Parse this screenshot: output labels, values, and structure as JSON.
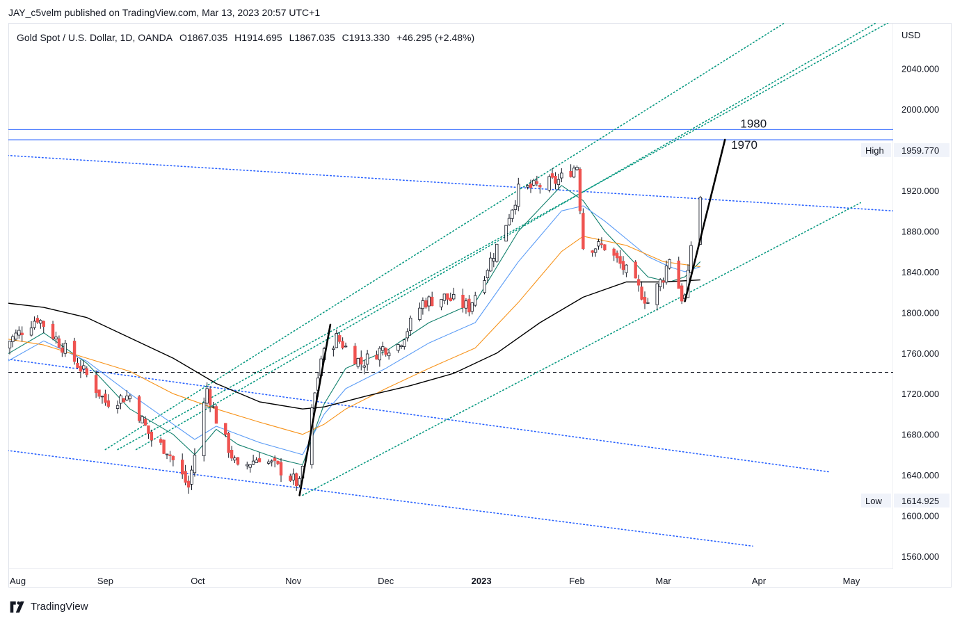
{
  "header": {
    "published": "JAY_c5velm published on TradingView.com, Mar 13, 2023 20:57 UTC+1"
  },
  "legend": {
    "symbol": "Gold Spot / U.S. Dollar, 1D, OANDA",
    "open": "O1867.035",
    "high": "H1914.695",
    "low": "L1867.035",
    "close": "C1913.330",
    "change": "+46.295 (+2.48%)"
  },
  "currency": "USD",
  "footer": {
    "brand": "TradingView"
  },
  "colors": {
    "bull": "#ffffff",
    "bear": "#ef5350",
    "wick": "#131722",
    "ema_fast": "#12806d",
    "ema_mid": "#5b9cf6",
    "ema_slow": "#f7931a",
    "sma_long": "#000000",
    "channel_blue": "#2962ff",
    "channel_green": "#089981",
    "hline": "#2962ff"
  },
  "chart_data": {
    "type": "candlestick",
    "title": "Gold Spot / U.S. Dollar, 1D, OANDA",
    "ylim": [
      1545,
      2085
    ],
    "y_ticks": [
      {
        "value": 1560,
        "label": "1560.000"
      },
      {
        "value": 1600,
        "label": "1600.000"
      },
      {
        "value": 1640,
        "label": "1640.000"
      },
      {
        "value": 1680,
        "label": "1680.000"
      },
      {
        "value": 1720,
        "label": "1720.000"
      },
      {
        "value": 1760,
        "label": "1760.000"
      },
      {
        "value": 1800,
        "label": "1800.000"
      },
      {
        "value": 1840,
        "label": "1840.000"
      },
      {
        "value": 1880,
        "label": "1880.000"
      },
      {
        "value": 1920,
        "label": "1920.000"
      },
      {
        "value": 2000,
        "label": "2000.000"
      },
      {
        "value": 2040,
        "label": "2040.000"
      }
    ],
    "x_ticks": [
      {
        "date": "2022-08-01",
        "label": "Aug",
        "bold": false
      },
      {
        "date": "2022-09-01",
        "label": "Sep",
        "bold": false
      },
      {
        "date": "2022-10-01",
        "label": "Oct",
        "bold": false
      },
      {
        "date": "2022-11-01",
        "label": "Nov",
        "bold": false
      },
      {
        "date": "2022-12-01",
        "label": "Dec",
        "bold": false
      },
      {
        "date": "2023-01-01",
        "label": "2023",
        "bold": true
      },
      {
        "date": "2023-02-01",
        "label": "Feb",
        "bold": false
      },
      {
        "date": "2023-03-01",
        "label": "Mar",
        "bold": false
      },
      {
        "date": "2023-04-01",
        "label": "Apr",
        "bold": false
      },
      {
        "date": "2023-05-01",
        "label": "May",
        "bold": false
      }
    ],
    "price_badges": [
      {
        "label": "High",
        "value": "1959.770",
        "price": 1959.77
      },
      {
        "label": "Low",
        "value": "1614.925",
        "price": 1614.925
      }
    ],
    "key_points": [
      {
        "date": "2022-07-29",
        "close": 1765
      },
      {
        "date": "2022-08-10",
        "close": 1795
      },
      {
        "date": "2022-08-15",
        "close": 1778
      },
      {
        "date": "2022-08-26",
        "close": 1738
      },
      {
        "date": "2022-09-01",
        "close": 1712
      },
      {
        "date": "2022-09-09",
        "close": 1718
      },
      {
        "date": "2022-09-16",
        "close": 1675
      },
      {
        "date": "2022-09-21",
        "close": 1665
      },
      {
        "date": "2022-09-28",
        "close": 1628
      },
      {
        "date": "2022-10-04",
        "close": 1725
      },
      {
        "date": "2022-10-07",
        "close": 1695
      },
      {
        "date": "2022-10-14",
        "close": 1645
      },
      {
        "date": "2022-10-21",
        "close": 1658
      },
      {
        "date": "2022-10-28",
        "close": 1645
      },
      {
        "date": "2022-11-03",
        "close": 1630
      },
      {
        "date": "2022-11-10",
        "close": 1755
      },
      {
        "date": "2022-11-15",
        "close": 1775
      },
      {
        "date": "2022-11-23",
        "close": 1750
      },
      {
        "date": "2022-11-30",
        "close": 1765
      },
      {
        "date": "2022-12-05",
        "close": 1768
      },
      {
        "date": "2022-12-13",
        "close": 1810
      },
      {
        "date": "2022-12-20",
        "close": 1815
      },
      {
        "date": "2022-12-28",
        "close": 1805
      },
      {
        "date": "2023-01-06",
        "close": 1865
      },
      {
        "date": "2023-01-13",
        "close": 1920
      },
      {
        "date": "2023-01-20",
        "close": 1925
      },
      {
        "date": "2023-01-26",
        "close": 1930
      },
      {
        "date": "2023-02-01",
        "close": 1945
      },
      {
        "date": "2023-02-03",
        "close": 1865
      },
      {
        "date": "2023-02-10",
        "close": 1865
      },
      {
        "date": "2023-02-17",
        "close": 1840
      },
      {
        "date": "2023-02-24",
        "close": 1810
      },
      {
        "date": "2023-03-01",
        "close": 1835
      },
      {
        "date": "2023-03-03",
        "close": 1855
      },
      {
        "date": "2023-03-07",
        "close": 1815
      },
      {
        "date": "2023-03-08",
        "close": 1815
      },
      {
        "date": "2023-03-09",
        "close": 1835
      },
      {
        "date": "2023-03-10",
        "close": 1867
      },
      {
        "date": "2023-03-13",
        "close": 1913.33
      }
    ],
    "moving_averages": [
      {
        "style": "ema_fast",
        "points": [
          [
            "2022-07-29",
            1755
          ],
          [
            "2022-08-12",
            1780
          ],
          [
            "2022-08-26",
            1750
          ],
          [
            "2022-09-09",
            1705
          ],
          [
            "2022-09-23",
            1680
          ],
          [
            "2022-09-30",
            1660
          ],
          [
            "2022-10-07",
            1685
          ],
          [
            "2022-10-14",
            1670
          ],
          [
            "2022-10-28",
            1655
          ],
          [
            "2022-11-04",
            1650
          ],
          [
            "2022-11-11",
            1710
          ],
          [
            "2022-11-18",
            1745
          ],
          [
            "2022-12-01",
            1762
          ],
          [
            "2022-12-15",
            1790
          ],
          [
            "2022-12-30",
            1810
          ],
          [
            "2023-01-13",
            1880
          ],
          [
            "2023-01-27",
            1925
          ],
          [
            "2023-02-03",
            1910
          ],
          [
            "2023-02-10",
            1880
          ],
          [
            "2023-02-24",
            1835
          ],
          [
            "2023-03-03",
            1830
          ],
          [
            "2023-03-08",
            1835
          ],
          [
            "2023-03-13",
            1850
          ]
        ]
      },
      {
        "style": "ema_mid",
        "points": [
          [
            "2022-07-29",
            1748
          ],
          [
            "2022-08-12",
            1772
          ],
          [
            "2022-08-26",
            1752
          ],
          [
            "2022-09-09",
            1720
          ],
          [
            "2022-09-23",
            1690
          ],
          [
            "2022-09-30",
            1675
          ],
          [
            "2022-10-07",
            1688
          ],
          [
            "2022-10-21",
            1672
          ],
          [
            "2022-11-04",
            1660
          ],
          [
            "2022-11-11",
            1700
          ],
          [
            "2022-11-18",
            1725
          ],
          [
            "2022-12-01",
            1745
          ],
          [
            "2022-12-15",
            1770
          ],
          [
            "2022-12-30",
            1790
          ],
          [
            "2023-01-13",
            1850
          ],
          [
            "2023-01-27",
            1900
          ],
          [
            "2023-02-03",
            1905
          ],
          [
            "2023-02-10",
            1890
          ],
          [
            "2023-02-24",
            1855
          ],
          [
            "2023-03-03",
            1845
          ],
          [
            "2023-03-08",
            1840
          ],
          [
            "2023-03-13",
            1845
          ]
        ]
      },
      {
        "style": "ema_slow",
        "points": [
          [
            "2022-07-29",
            1775
          ],
          [
            "2022-08-12",
            1768
          ],
          [
            "2022-08-26",
            1755
          ],
          [
            "2022-09-09",
            1742
          ],
          [
            "2022-09-23",
            1720
          ],
          [
            "2022-10-07",
            1705
          ],
          [
            "2022-10-21",
            1692
          ],
          [
            "2022-11-04",
            1680
          ],
          [
            "2022-11-11",
            1690
          ],
          [
            "2022-11-18",
            1705
          ],
          [
            "2022-12-01",
            1725
          ],
          [
            "2022-12-15",
            1745
          ],
          [
            "2022-12-30",
            1765
          ],
          [
            "2023-01-13",
            1810
          ],
          [
            "2023-01-27",
            1860
          ],
          [
            "2023-02-03",
            1875
          ],
          [
            "2023-02-17",
            1866
          ],
          [
            "2023-03-01",
            1850
          ],
          [
            "2023-03-13",
            1845
          ]
        ]
      },
      {
        "style": "sma_long",
        "points": [
          [
            "2022-07-29",
            1810
          ],
          [
            "2022-08-12",
            1805
          ],
          [
            "2022-08-26",
            1795
          ],
          [
            "2022-09-09",
            1775
          ],
          [
            "2022-09-23",
            1755
          ],
          [
            "2022-10-07",
            1730
          ],
          [
            "2022-10-21",
            1712
          ],
          [
            "2022-11-04",
            1705
          ],
          [
            "2022-11-11",
            1707
          ],
          [
            "2022-11-25",
            1718
          ],
          [
            "2022-12-09",
            1728
          ],
          [
            "2022-12-23",
            1740
          ],
          [
            "2023-01-06",
            1760
          ],
          [
            "2023-01-20",
            1790
          ],
          [
            "2023-02-03",
            1815
          ],
          [
            "2023-02-17",
            1830
          ],
          [
            "2023-03-01",
            1830
          ],
          [
            "2023-03-13",
            1832
          ]
        ]
      }
    ],
    "trendlines": [
      {
        "style": "channel_blue",
        "from": [
          "2022-07-29",
          1955
        ],
        "to": [
          "2023-05-25",
          1898
        ]
      },
      {
        "style": "channel_blue",
        "from": [
          "2022-07-29",
          1755
        ],
        "to": [
          "2023-04-24",
          1643
        ]
      },
      {
        "style": "channel_blue",
        "from": [
          "2022-07-29",
          1665
        ],
        "to": [
          "2023-03-30",
          1570
        ]
      },
      {
        "style": "channel_green",
        "from": [
          "2022-09-01",
          1665
        ],
        "to": [
          "2023-04-13",
          2092
        ]
      },
      {
        "style": "channel_green",
        "from": [
          "2022-09-05",
          1665
        ],
        "to": [
          "2023-05-17",
          2092
        ]
      },
      {
        "style": "channel_green",
        "from": [
          "2022-09-11",
          1665
        ],
        "to": [
          "2023-05-13",
          2092
        ]
      },
      {
        "style": "channel_green",
        "from": [
          "2022-11-04",
          1620
        ],
        "to": [
          "2023-05-04",
          1908
        ]
      }
    ],
    "projection_lines": [
      {
        "from": [
          "2022-11-03",
          1620
        ],
        "to": [
          "2022-11-13",
          1788
        ]
      },
      {
        "from": [
          "2023-03-08",
          1811
        ],
        "to": [
          "2023-03-21",
          1970
        ]
      }
    ],
    "horizontal_lines": [
      {
        "price": 1980,
        "style": "solid"
      },
      {
        "price": 1970,
        "style": "solid"
      },
      {
        "price": 1741,
        "style": "dashed"
      }
    ],
    "annotations": [
      {
        "text": "1980",
        "date": "2023-03-26",
        "price": 1982
      },
      {
        "text": "1970",
        "date": "2023-03-23",
        "price": 1961
      }
    ]
  }
}
